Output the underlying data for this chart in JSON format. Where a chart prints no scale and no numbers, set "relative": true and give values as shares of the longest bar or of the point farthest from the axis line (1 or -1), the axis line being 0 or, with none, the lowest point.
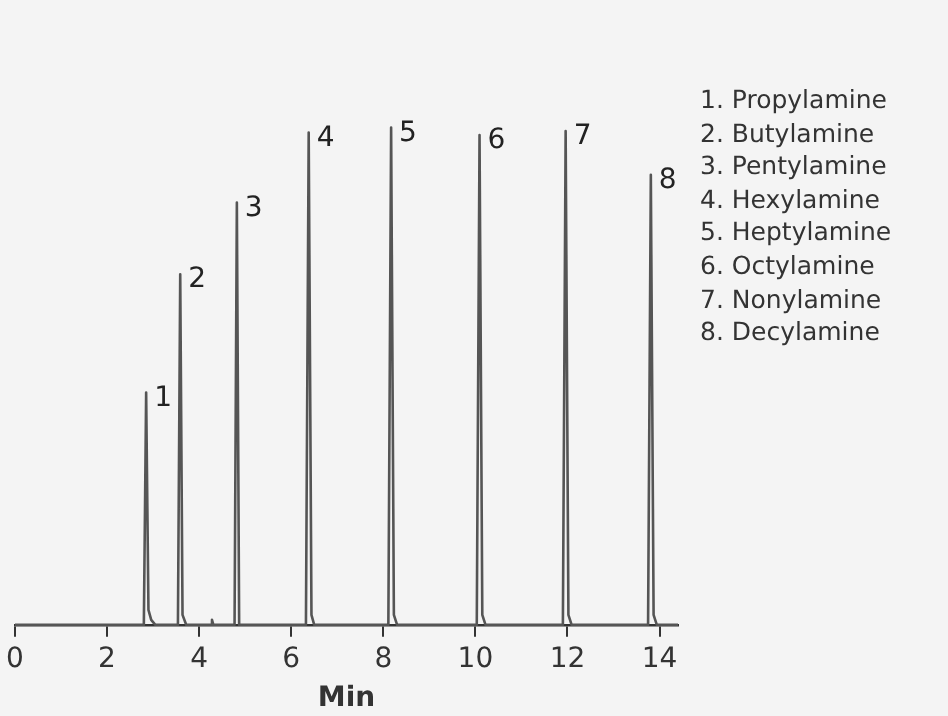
{
  "chart_data": {
    "type": "line",
    "relative": true,
    "xlabel": "Min",
    "xlim": [
      0,
      14.4
    ],
    "xticks": [
      0,
      2,
      4,
      6,
      8,
      10,
      12,
      14
    ],
    "grid": false,
    "legend": false,
    "marker": "none",
    "line_style": "solid",
    "series": [
      {
        "color": "#555555",
        "x": [
          0,
          2.8,
          2.85,
          2.9,
          2.96,
          3.05,
          3.54,
          3.59,
          3.64,
          3.72,
          4.25,
          4.28,
          4.31,
          4.77,
          4.82,
          4.87,
          6.32,
          6.38,
          6.44,
          6.5,
          8.11,
          8.17,
          8.23,
          8.3,
          10.03,
          10.09,
          10.15,
          10.22,
          11.9,
          11.96,
          12.02,
          12.09,
          13.75,
          13.81,
          13.87,
          13.94,
          14.4
        ],
        "values": [
          0,
          0,
          0.467,
          0.03,
          0.01,
          0,
          0,
          0.705,
          0.02,
          0,
          0,
          0.01,
          0,
          0,
          0.849,
          0,
          0,
          0.99,
          0.02,
          0,
          0,
          1,
          0.02,
          0,
          0,
          0.985,
          0.02,
          0,
          0,
          0.993,
          0.02,
          0,
          0,
          0.905,
          0.02,
          0,
          0
        ]
      }
    ],
    "annotations": [
      {
        "text": "1",
        "x": 2.85,
        "y": 0.467
      },
      {
        "text": "2",
        "x": 3.59,
        "y": 0.705
      },
      {
        "text": "3",
        "x": 4.82,
        "y": 0.849
      },
      {
        "text": "4",
        "x": 6.38,
        "y": 0.99
      },
      {
        "text": "5",
        "x": 8.17,
        "y": 1
      },
      {
        "text": "6",
        "x": 10.09,
        "y": 0.985
      },
      {
        "text": "7",
        "x": 11.96,
        "y": 0.993
      },
      {
        "text": "8",
        "x": 13.81,
        "y": 0.905
      },
      "1. Propylamine",
      "2. Butylamine",
      "3. Pentylamine",
      "4. Hexylamine",
      "5. Heptylamine",
      "6. Octylamine",
      "7. Nonylamine",
      "8. Decylamine"
    ]
  }
}
